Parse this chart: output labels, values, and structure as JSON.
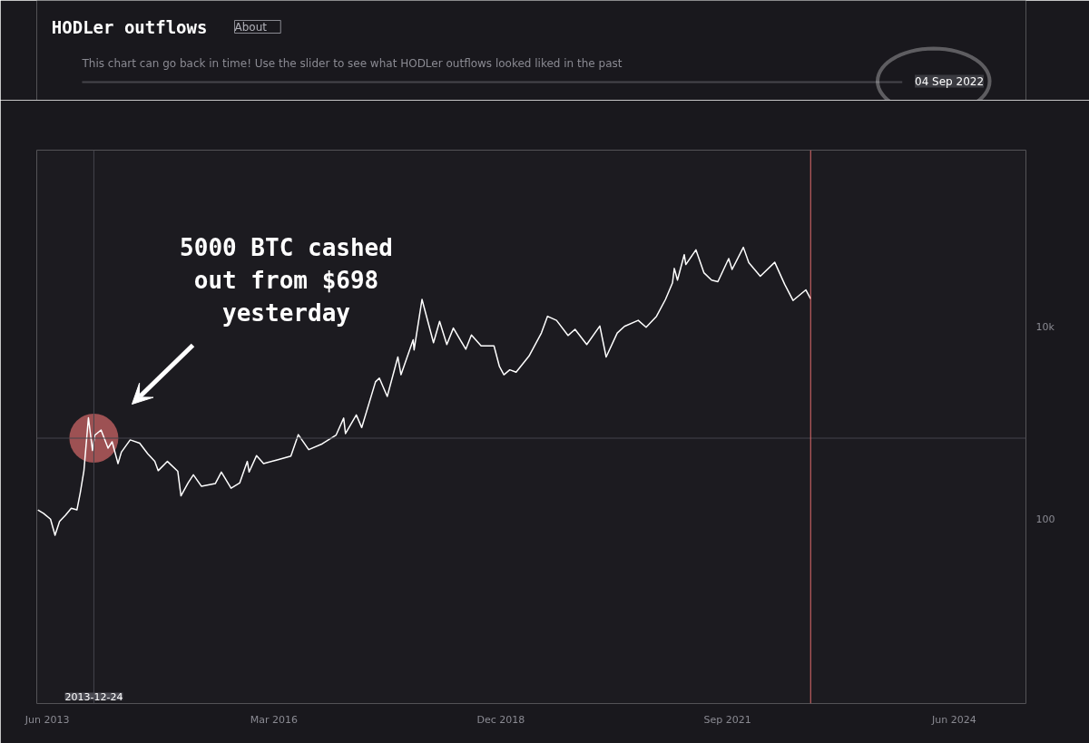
{
  "chart_data": {
    "type": "line",
    "title": "HODLer outflows",
    "subtitle": "This chart can go back in time! Use the slider to see what HODLer outflows looked liked in the past",
    "annotations": [
      "About",
      "04 Sep 2022",
      "5000 BTC cashed out from $698 yesterday"
    ],
    "log": true,
    "grid": false,
    "xlim": [
      "2013-04-15",
      "2025-04-15"
    ],
    "xticks": [
      {
        "value": "2013-06-01",
        "label": "Jun 2013"
      },
      {
        "value": "2016-03-01",
        "label": "Mar 2016"
      },
      {
        "value": "2018-12-01",
        "label": "Dec 2018"
      },
      {
        "value": "2021-09-01",
        "label": "Sep 2021"
      },
      {
        "value": "2024-06-01",
        "label": "Jun 2024"
      }
    ],
    "ylim": [
      1.2,
      700000
    ],
    "yticks": [
      100,
      {
        "value": 10000,
        "label": "10k"
      }
    ],
    "ref_lines": [
      {
        "axis": "x",
        "value": "2013-12-24",
        "label": "2013-12-24",
        "color": "#45454c"
      },
      {
        "axis": "y",
        "value": 698,
        "label": null,
        "color": "#45454c"
      },
      {
        "axis": "x",
        "value": "2022-09-04",
        "label": null,
        "color": "#e06c6c"
      }
    ],
    "series": [
      {
        "color": "#ffffff",
        "x": [
          "2013-04-20",
          "2013-05-15",
          "2013-06-15",
          "2013-07-05",
          "2013-07-25",
          "2013-08-20",
          "2013-09-15",
          "2013-10-10",
          "2013-10-25",
          "2013-11-10",
          "2013-11-30",
          "2013-12-18",
          "2013-12-28",
          "2014-01-25",
          "2014-02-25",
          "2014-03-15",
          "2014-04-10",
          "2014-04-25",
          "2014-06-03",
          "2014-07-15",
          "2014-08-20",
          "2014-09-20",
          "2014-10-05",
          "2014-11-15",
          "2014-12-31",
          "2015-01-14",
          "2015-02-15",
          "2015-03-10",
          "2015-04-15",
          "2015-06-15",
          "2015-07-12",
          "2015-08-24",
          "2015-10-01",
          "2015-11-04",
          "2015-11-12",
          "2015-12-15",
          "2016-01-15",
          "2016-03-15",
          "2016-05-15",
          "2016-06-17",
          "2016-08-02",
          "2016-10-01",
          "2016-12-01",
          "2017-01-04",
          "2017-01-12",
          "2017-03-01",
          "2017-03-25",
          "2017-05-25",
          "2017-06-11",
          "2017-07-16",
          "2017-09-01",
          "2017-09-15",
          "2017-11-08",
          "2017-11-12",
          "2017-12-17",
          "2018-02-06",
          "2018-03-05",
          "2018-04-06",
          "2018-05-05",
          "2018-06-29",
          "2018-07-24",
          "2018-09-05",
          "2018-11-01",
          "2018-11-25",
          "2018-12-15",
          "2019-01-10",
          "2019-02-07",
          "2019-04-05",
          "2019-05-30",
          "2019-06-26",
          "2019-08-05",
          "2019-09-25",
          "2019-10-26",
          "2019-12-17",
          "2020-02-13",
          "2020-03-12",
          "2020-04-30",
          "2020-06-01",
          "2020-08-01",
          "2020-09-05",
          "2020-10-21",
          "2020-11-30",
          "2020-12-31",
          "2021-01-08",
          "2021-01-22",
          "2021-02-21",
          "2021-02-28",
          "2021-04-14",
          "2021-05-19",
          "2021-06-22",
          "2021-07-20",
          "2021-09-06",
          "2021-09-21",
          "2021-11-10",
          "2021-12-04",
          "2022-01-24",
          "2022-03-29",
          "2022-05-12",
          "2022-06-18",
          "2022-08-14",
          "2022-09-04"
        ],
        "values": [
          125,
          115,
          100,
          68,
          95,
          110,
          130,
          125,
          190,
          320,
          1140,
          520,
          750,
          850,
          550,
          640,
          380,
          500,
          670,
          620,
          480,
          400,
          320,
          400,
          315,
          175,
          240,
          290,
          220,
          235,
          310,
          210,
          238,
          400,
          310,
          460,
          380,
          415,
          455,
          760,
          530,
          610,
          750,
          1130,
          780,
          1220,
          900,
          2700,
          2950,
          1900,
          4900,
          3200,
          7400,
          5800,
          19500,
          6900,
          11500,
          6600,
          9800,
          5900,
          8300,
          6400,
          6400,
          3900,
          3200,
          3600,
          3400,
          5000,
          8700,
          13000,
          11800,
          8200,
          9500,
          6600,
          10300,
          4900,
          8700,
          10200,
          11800,
          10000,
          13000,
          19500,
          29000,
          41000,
          31000,
          57000,
          45000,
          64000,
          37000,
          31000,
          29800,
          52000,
          40000,
          68000,
          47000,
          34000,
          47500,
          28000,
          19000,
          24500,
          19800
        ]
      },
      {
        "type": "scatter",
        "marker": "circle",
        "color": "#c86464",
        "x": [
          "2013-12-24"
        ],
        "values": [
          698
        ]
      }
    ]
  }
}
